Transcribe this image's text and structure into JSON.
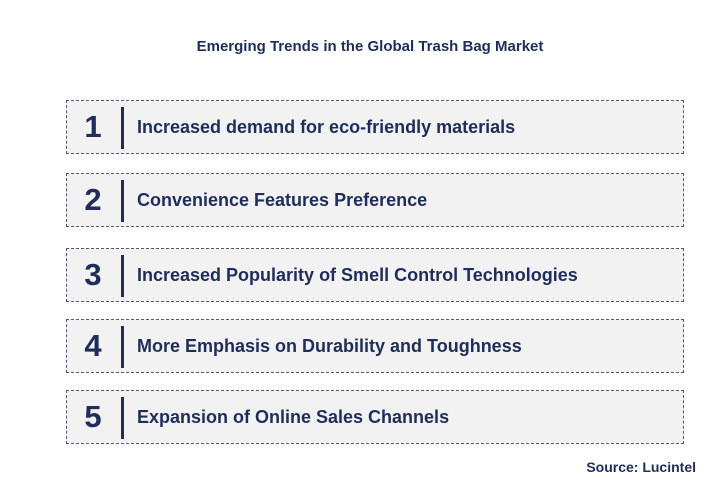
{
  "title": "Emerging Trends in the Global Trash Bag Market",
  "trends": [
    {
      "number": "1",
      "label": "Increased demand for eco-friendly materials"
    },
    {
      "number": "2",
      "label": "Convenience Features Preference"
    },
    {
      "number": "3",
      "label": "Increased Popularity of Smell Control Technologies"
    },
    {
      "number": "4",
      "label": "More Emphasis on Durability and Toughness"
    },
    {
      "number": "5",
      "label": "Expansion of Online Sales Channels"
    }
  ],
  "source": "Source: Lucintel",
  "colors": {
    "text": "#1f2d5a",
    "box_background": "#f2f2f2",
    "box_border": "#4d5a7a"
  }
}
